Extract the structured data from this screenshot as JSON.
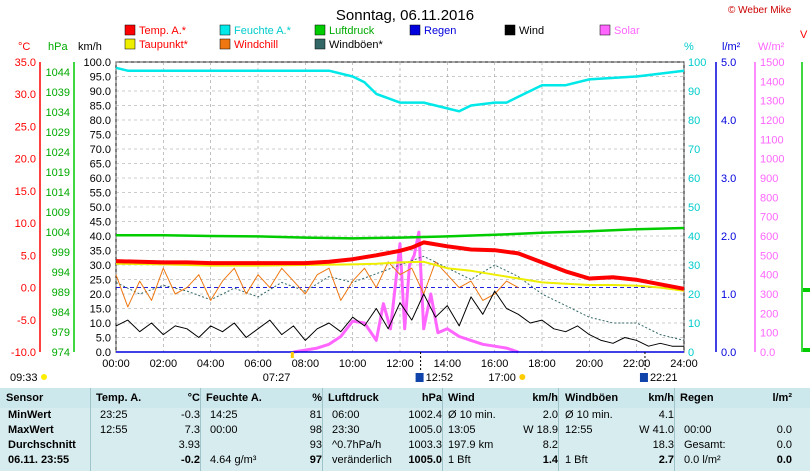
{
  "title": "Sonntag, 06.11.2016",
  "credit": "© Weber Mike",
  "colors": {
    "temp": "#ff0000",
    "humidity": "#00e8e8",
    "pressure": "#00cc00",
    "rain": "#0000dd",
    "wind": "#000000",
    "solar": "#ff66ff",
    "dewpoint": "#eeee00",
    "windchill": "#ee7711",
    "gust": "#336666",
    "table_bg": "#d7ecef"
  },
  "legend": [
    {
      "label": "Temp. A.*",
      "color": "#ff0000",
      "text_color": "#ff0000"
    },
    {
      "label": "Feuchte A.*",
      "color": "#00e8e8",
      "text_color": "#00cccc"
    },
    {
      "label": "Luftdruck",
      "color": "#00cc00",
      "text_color": "#00aa00"
    },
    {
      "label": "Regen",
      "color": "#0000dd",
      "text_color": "#0000dd"
    },
    {
      "label": "Wind",
      "color": "#000000",
      "text_color": "#000000"
    },
    {
      "label": "Solar",
      "color": "#ff66ff",
      "text_color": "#ff66ff"
    },
    {
      "label": "Taupunkt*",
      "color": "#eeee00",
      "text_color": "#ff0000"
    },
    {
      "label": "Windchill",
      "color": "#ee7711",
      "text_color": "#ff0000"
    },
    {
      "label": "Windböen*",
      "color": "#336666",
      "text_color": "#000000"
    }
  ],
  "axis_units": {
    "temp": "°C",
    "pressure": "hPa",
    "wind": "km/h",
    "humidity": "%",
    "rain": "l/m²",
    "solar": "W/m²",
    "far_right": "V"
  },
  "time_labels": [
    {
      "label": "09:33",
      "type": "moonrise"
    },
    {
      "label": "07:27",
      "type": "sunrise"
    },
    {
      "label": "12:52",
      "type": "noon"
    },
    {
      "label": "17:00",
      "type": "sunset"
    },
    {
      "label": "22:21",
      "type": "moonset"
    }
  ],
  "chart_data": {
    "type": "line",
    "x_ticks": [
      "00:00",
      "02:00",
      "04:00",
      "06:00",
      "08:00",
      "10:00",
      "12:00",
      "14:00",
      "16:00",
      "18:00",
      "20:00",
      "22:00",
      "24:00"
    ],
    "xlim": [
      0,
      24
    ],
    "axes": {
      "temp": {
        "unit": "°C",
        "ylim": [
          -10,
          35
        ],
        "ticks": [
          "35.0",
          "30.0",
          "25.0",
          "20.0",
          "15.0",
          "10.0",
          "5.0",
          "0.0",
          "-5.0",
          "-10.0"
        ]
      },
      "pressure": {
        "unit": "hPa",
        "ylim": [
          974,
          1046.5
        ],
        "ticks": [
          "1044",
          "1039",
          "1034",
          "1029",
          "1024",
          "1019",
          "1014",
          "1009",
          "1004",
          "999",
          "994",
          "989",
          "984",
          "979",
          "974"
        ]
      },
      "wind": {
        "unit": "km/h",
        "ylim": [
          0,
          100
        ],
        "ticks": [
          "100.0",
          "95.0",
          "90.0",
          "85.0",
          "80.0",
          "75.0",
          "70.0",
          "65.0",
          "60.0",
          "55.0",
          "50.0",
          "45.0",
          "40.0",
          "35.0",
          "30.0",
          "25.0",
          "20.0",
          "15.0",
          "10.0",
          "5.0",
          "0.0"
        ]
      },
      "humidity": {
        "unit": "%",
        "ylim": [
          0,
          100
        ],
        "ticks": [
          "100",
          "90",
          "80",
          "70",
          "60",
          "50",
          "40",
          "30",
          "20",
          "10",
          "0"
        ]
      },
      "rain": {
        "unit": "l/m²",
        "ylim": [
          0,
          5
        ],
        "ticks": [
          "5.0",
          "4.0",
          "3.0",
          "2.0",
          "1.0",
          "0.0"
        ]
      },
      "solar": {
        "unit": "W/m²",
        "ylim": [
          0,
          1500
        ],
        "ticks": [
          "1500",
          "1400",
          "1300",
          "1200",
          "1100",
          "1000",
          "900",
          "800",
          "700",
          "600",
          "500",
          "400",
          "300",
          "200",
          "100",
          "0.0"
        ]
      }
    },
    "series": [
      {
        "name": "Temp. A.*",
        "axis": "temp",
        "x": [
          0,
          1,
          2,
          3,
          4,
          5,
          6,
          7,
          8,
          9,
          10,
          11,
          12,
          12.5,
          13,
          14,
          15,
          16,
          17,
          18,
          19,
          20,
          21,
          22,
          23,
          24
        ],
        "y": [
          4.1,
          4.0,
          3.9,
          3.9,
          3.8,
          3.8,
          3.8,
          3.8,
          3.8,
          4.0,
          4.4,
          5.0,
          5.7,
          6.2,
          7.0,
          6.4,
          5.9,
          5.8,
          5.3,
          3.9,
          2.5,
          1.4,
          1.6,
          1.2,
          0.5,
          -0.2
        ]
      },
      {
        "name": "Feuchte A.*",
        "axis": "humidity",
        "x": [
          0,
          0.5,
          1,
          2,
          4,
          6,
          8,
          9,
          10,
          10.5,
          11,
          12,
          13,
          14,
          14.5,
          15,
          16,
          16.5,
          17,
          18,
          19,
          20,
          22,
          24
        ],
        "y": [
          98,
          97,
          97,
          97,
          97,
          97,
          97,
          97,
          95,
          93,
          89,
          86,
          86,
          84,
          83,
          85,
          86,
          86,
          88,
          92,
          92,
          94,
          95,
          97
        ]
      },
      {
        "name": "Taupunkt*",
        "axis": "temp",
        "x": [
          0,
          2,
          4,
          6,
          8,
          10,
          11,
          12,
          13,
          14,
          15,
          16,
          17,
          18,
          19,
          20,
          21,
          22,
          23,
          24
        ],
        "y": [
          3.7,
          3.6,
          3.4,
          3.4,
          3.5,
          3.6,
          3.7,
          3.9,
          4.0,
          3.0,
          2.6,
          2.0,
          1.4,
          0.8,
          0.6,
          0.4,
          0.4,
          0.3,
          0,
          -0.5
        ]
      },
      {
        "name": "Luftdruck",
        "axis": "pressure",
        "x": [
          0,
          2,
          4,
          6,
          8,
          10,
          12,
          14,
          16,
          18,
          20,
          22,
          24
        ],
        "y": [
          1003.2,
          1003.2,
          1003.0,
          1002.9,
          1002.6,
          1002.4,
          1002.6,
          1002.9,
          1003.3,
          1003.8,
          1004.2,
          1004.7,
          1005.0
        ]
      },
      {
        "name": "Wind",
        "axis": "wind",
        "x": [
          0,
          0.5,
          1,
          1.5,
          2,
          2.5,
          3,
          3.5,
          4,
          4.5,
          5,
          5.5,
          6,
          6.5,
          7,
          7.5,
          8,
          8.5,
          9,
          9.5,
          10,
          10.5,
          11,
          11.5,
          12,
          12.5,
          13,
          13.5,
          14,
          14.5,
          15,
          15.5,
          16,
          16.5,
          17,
          17.5,
          18,
          18.5,
          19,
          19.5,
          20,
          20.5,
          21,
          21.5,
          22,
          22.5,
          23,
          23.5,
          24
        ],
        "y": [
          9,
          11,
          7,
          10,
          6,
          9,
          8,
          5,
          9,
          7,
          10,
          5,
          8,
          11,
          6,
          9,
          4,
          8,
          10,
          7,
          12,
          9,
          15,
          8,
          17,
          11,
          20,
          12,
          16,
          9,
          19,
          13,
          21,
          15,
          13,
          10,
          11,
          8,
          7,
          9,
          6,
          4,
          3,
          5,
          4,
          2,
          3,
          2,
          2
        ]
      },
      {
        "name": "Windchill",
        "axis": "temp",
        "x": [
          0,
          0.5,
          1,
          1.5,
          2,
          2.5,
          3,
          3.5,
          4,
          4.5,
          5,
          5.5,
          6,
          6.5,
          7,
          7.5,
          8,
          8.5,
          9,
          9.5,
          10,
          10.5,
          11,
          11.5,
          12,
          12.5,
          13,
          13.5,
          14,
          14.5,
          15,
          15.5,
          16,
          16.5,
          17
        ],
        "y": [
          2,
          -3,
          1,
          -2,
          3,
          -1,
          0,
          2,
          -2,
          1,
          3,
          -1,
          2,
          0,
          3,
          1,
          -1,
          2,
          3,
          -2,
          1,
          3,
          0,
          4,
          2,
          3,
          -1,
          4,
          2,
          0,
          1,
          -2,
          -1,
          1,
          0
        ]
      },
      {
        "name": "Windböen*",
        "axis": "wind",
        "x": [
          0,
          1,
          2,
          3,
          4,
          5,
          6,
          7,
          8,
          9,
          10,
          11,
          12,
          13,
          14,
          15,
          16,
          17,
          18,
          19,
          20,
          21,
          22,
          23,
          24
        ],
        "y": [
          24,
          20,
          23,
          21,
          18,
          22,
          19,
          24,
          21,
          26,
          24,
          27,
          30,
          33,
          29,
          25,
          30,
          26,
          20,
          16,
          12,
          10,
          10,
          6,
          4
        ]
      },
      {
        "name": "Solar",
        "axis": "solar",
        "x": [
          7.5,
          8,
          8.5,
          9,
          9.5,
          10,
          10.5,
          11,
          11.3,
          11.6,
          12,
          12.2,
          12.4,
          12.6,
          12.8,
          13,
          13.3,
          13.6,
          14,
          14.5,
          15,
          15.5,
          16,
          16.5,
          17
        ],
        "y": [
          0,
          10,
          20,
          40,
          80,
          160,
          150,
          60,
          250,
          120,
          560,
          120,
          450,
          500,
          620,
          120,
          300,
          100,
          120,
          80,
          60,
          40,
          30,
          20,
          0
        ]
      },
      {
        "name": "Regen",
        "axis": "rain",
        "x": [
          0,
          24
        ],
        "y": [
          0,
          0
        ]
      }
    ]
  },
  "table": {
    "headers": [
      {
        "label": "Sensor",
        "unit": ""
      },
      {
        "label": "Temp. A.",
        "unit": "°C"
      },
      {
        "label": "Feuchte A.",
        "unit": "%"
      },
      {
        "label": "Luftdruck",
        "unit": "hPa"
      },
      {
        "label": "Wind",
        "unit": "km/h"
      },
      {
        "label": "Windböen",
        "unit": "km/h"
      },
      {
        "label": "Regen",
        "unit": "l/m²"
      }
    ],
    "rows": [
      {
        "label": "MinWert",
        "cells": [
          [
            "23:25",
            "-0.3"
          ],
          [
            "14:25",
            "81"
          ],
          [
            "06:00",
            "1002.4"
          ],
          [
            "Ø 10 min.",
            "2.0"
          ],
          [
            "Ø 10 min.",
            "4.1"
          ],
          [
            "",
            ""
          ]
        ]
      },
      {
        "label": "MaxWert",
        "cells": [
          [
            "12:55",
            "7.3"
          ],
          [
            "00:00",
            "98"
          ],
          [
            "23:30",
            "1005.0"
          ],
          [
            "13:05",
            "W 18.9"
          ],
          [
            "12:55",
            "W 41.0"
          ],
          [
            "00:00",
            "0.0"
          ]
        ]
      },
      {
        "label": "Durchschnitt",
        "cells": [
          [
            "",
            "3.93"
          ],
          [
            "",
            "93"
          ],
          [
            "^0.7hPa/h",
            "1003.3"
          ],
          [
            "197.9 km",
            "8.2"
          ],
          [
            "",
            "18.3"
          ],
          [
            "Gesamt:",
            "0.0"
          ]
        ]
      },
      {
        "label": "06.11. 23:55",
        "cells": [
          [
            "",
            "-0.2"
          ],
          [
            "4.64 g/m³",
            "97"
          ],
          [
            "veränderlich",
            "1005.0"
          ],
          [
            "1 Bft",
            "1.4"
          ],
          [
            "1 Bft",
            "2.7"
          ],
          [
            "0.0 l/m²",
            "0.0"
          ]
        ]
      }
    ]
  }
}
